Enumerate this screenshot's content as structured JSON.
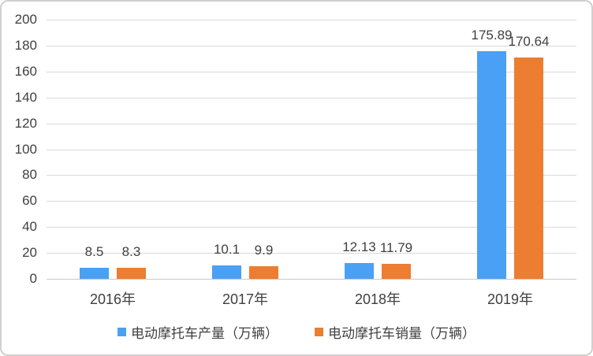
{
  "frame": {
    "background": "#ffffff",
    "border_color": "#d2cfcf"
  },
  "chart_data": {
    "type": "bar",
    "title": "",
    "xlabel": "",
    "ylabel": "",
    "categories": [
      "2016年",
      "2017年",
      "2018年",
      "2019年"
    ],
    "series": [
      {
        "name": "电动摩托车产量（万辆）",
        "color": "#4AA0F4",
        "values": [
          8.5,
          10.1,
          12.13,
          175.89
        ],
        "data_labels": [
          "8.5",
          "10.1",
          "12.13",
          "175.89"
        ]
      },
      {
        "name": "电动摩托车销量（万辆）",
        "color": "#ED7D31",
        "values": [
          8.3,
          9.9,
          11.79,
          170.64
        ],
        "data_labels": [
          "8.3",
          "9.9",
          "11.79",
          "170.64"
        ]
      }
    ],
    "ylim": [
      0,
      200
    ],
    "ytick_step": 20,
    "yticks": [
      "0",
      "20",
      "40",
      "60",
      "80",
      "100",
      "120",
      "140",
      "160",
      "180",
      "200"
    ],
    "grid": true,
    "gridline_color": "#d9d9d9",
    "axis_line_color": "#c8c8c8",
    "text_color": "#404040",
    "legend_position": "bottom"
  }
}
